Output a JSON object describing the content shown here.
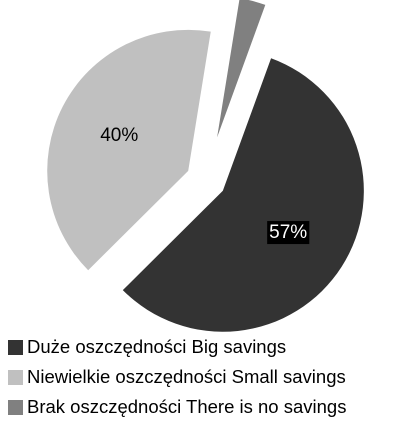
{
  "chart_data": {
    "type": "pie",
    "title": "",
    "slices": [
      {
        "label": "Duże oszczędności Big savings",
        "value": 57,
        "display": "57%",
        "color": "#333333"
      },
      {
        "label": "Niewielkie oszczędności Small savings",
        "value": 40,
        "display": "40%",
        "color": "#c0c0c0"
      },
      {
        "label": "Brak oszczędności There is no savings",
        "value": 3,
        "display": "3%",
        "color": "#808080"
      }
    ],
    "exploded": true,
    "legend_position": "bottom"
  }
}
